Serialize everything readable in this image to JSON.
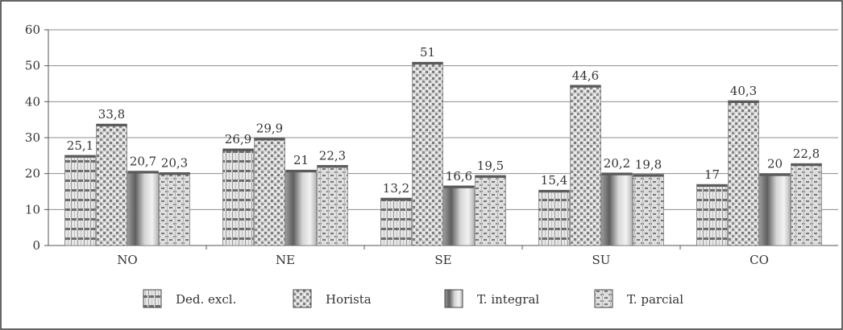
{
  "chart_data": {
    "type": "bar",
    "categories": [
      "NO",
      "NE",
      "SE",
      "SU",
      "CO"
    ],
    "series": [
      {
        "name": "Ded. excl.",
        "values": [
          25.1,
          26.9,
          13.2,
          15.4,
          17
        ]
      },
      {
        "name": "Horista",
        "values": [
          33.8,
          29.9,
          51,
          44.6,
          40.3
        ]
      },
      {
        "name": "T. integral",
        "values": [
          20.7,
          21,
          16.6,
          20.2,
          20
        ]
      },
      {
        "name": "T. parcial",
        "values": [
          20.3,
          22.3,
          19.5,
          19.8,
          22.8
        ]
      }
    ],
    "data_labels": [
      [
        "25,1",
        "26,9",
        "13,2",
        "15,4",
        "17"
      ],
      [
        "33,8",
        "29,9",
        "51",
        "44,6",
        "40,3"
      ],
      [
        "20,7",
        "21",
        "16,6",
        "20,2",
        "20"
      ],
      [
        "20,3",
        "22,3",
        "19,5",
        "19,8",
        "22,8"
      ]
    ],
    "y_ticks": [
      "0",
      "10",
      "20",
      "30",
      "40",
      "50",
      "60"
    ],
    "ylim": [
      0,
      60
    ],
    "grid": true,
    "legend_position": "bottom",
    "title": "",
    "xlabel": "",
    "ylabel": ""
  }
}
